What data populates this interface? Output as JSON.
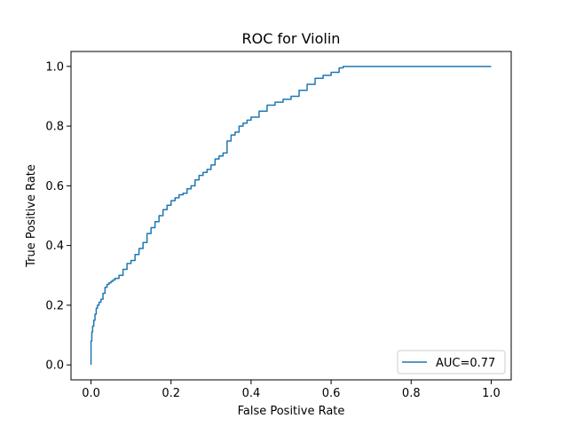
{
  "chart_data": {
    "type": "line",
    "title": "ROC for Violin",
    "xlabel": "False Positive Rate",
    "ylabel": "True Positive Rate",
    "xlim": [
      -0.05,
      1.05
    ],
    "ylim": [
      -0.05,
      1.05
    ],
    "xticks": [
      0.0,
      0.2,
      0.4,
      0.6,
      0.8,
      1.0
    ],
    "yticks": [
      0.0,
      0.2,
      0.4,
      0.6,
      0.8,
      1.0
    ],
    "xtick_labels": [
      "0.0",
      "0.2",
      "0.4",
      "0.6",
      "0.8",
      "1.0"
    ],
    "ytick_labels": [
      "0.0",
      "0.2",
      "0.4",
      "0.6",
      "0.8",
      "1.0"
    ],
    "grid": false,
    "legend_position": "lower-right",
    "series": [
      {
        "name": "AUC=0.77",
        "color": "#1f77b4",
        "x": [
          0.0,
          0.0,
          0.002,
          0.004,
          0.007,
          0.01,
          0.013,
          0.016,
          0.02,
          0.025,
          0.03,
          0.035,
          0.04,
          0.045,
          0.05,
          0.055,
          0.06,
          0.07,
          0.08,
          0.09,
          0.1,
          0.11,
          0.12,
          0.13,
          0.14,
          0.15,
          0.16,
          0.17,
          0.18,
          0.19,
          0.2,
          0.21,
          0.22,
          0.23,
          0.24,
          0.25,
          0.26,
          0.27,
          0.28,
          0.29,
          0.3,
          0.31,
          0.32,
          0.33,
          0.34,
          0.35,
          0.36,
          0.37,
          0.38,
          0.39,
          0.4,
          0.42,
          0.44,
          0.46,
          0.48,
          0.5,
          0.52,
          0.54,
          0.56,
          0.58,
          0.6,
          0.62,
          0.63,
          0.64,
          0.7,
          0.8,
          0.9,
          1.0
        ],
        "y": [
          0.0,
          0.08,
          0.11,
          0.13,
          0.15,
          0.17,
          0.19,
          0.2,
          0.21,
          0.22,
          0.24,
          0.26,
          0.27,
          0.275,
          0.28,
          0.285,
          0.29,
          0.3,
          0.32,
          0.34,
          0.35,
          0.37,
          0.39,
          0.41,
          0.44,
          0.46,
          0.48,
          0.5,
          0.52,
          0.535,
          0.55,
          0.56,
          0.57,
          0.575,
          0.59,
          0.6,
          0.62,
          0.635,
          0.645,
          0.655,
          0.67,
          0.69,
          0.7,
          0.71,
          0.75,
          0.77,
          0.78,
          0.8,
          0.81,
          0.82,
          0.83,
          0.85,
          0.87,
          0.88,
          0.89,
          0.9,
          0.92,
          0.94,
          0.96,
          0.97,
          0.98,
          0.995,
          1.0,
          1.0,
          1.0,
          1.0,
          1.0,
          1.0
        ]
      }
    ]
  }
}
